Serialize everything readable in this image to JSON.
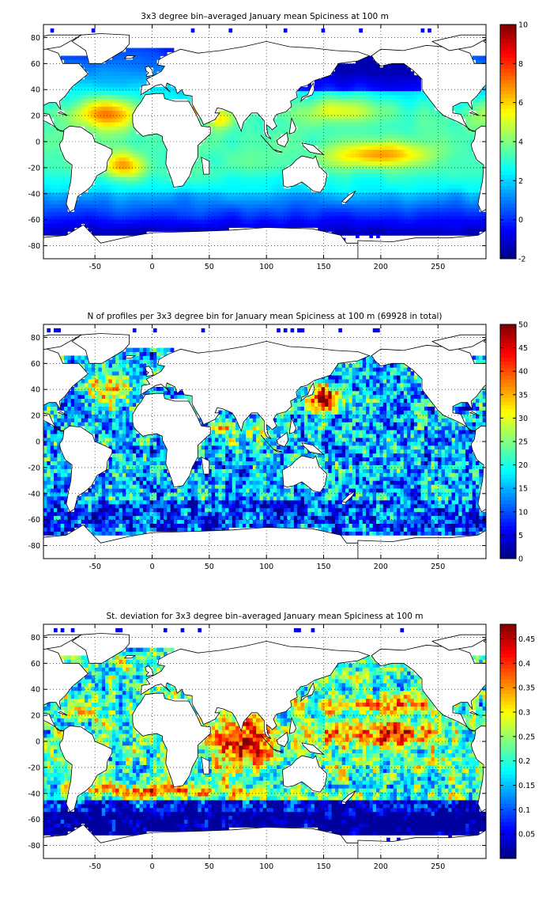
{
  "chart_data": [
    {
      "type": "heatmap",
      "title": "3x3 degree bin–averaged January mean Spiciness at 100 m",
      "xlabel": "",
      "ylabel": "",
      "xlim": [
        -95,
        292
      ],
      "ylim": [
        -90,
        90
      ],
      "xticks": [
        -50,
        0,
        50,
        100,
        150,
        200,
        250
      ],
      "yticks": [
        80,
        60,
        40,
        20,
        0,
        -20,
        -40,
        -60,
        -80
      ],
      "grid": true,
      "grid_style": "dotted",
      "colormap": "jet",
      "colorbar": {
        "min": -2,
        "max": 10,
        "ticks": [
          10,
          8,
          6,
          4,
          2,
          0,
          -2
        ]
      },
      "bin_size_deg": 3,
      "field": "spice"
    },
    {
      "type": "heatmap",
      "title": "N of profiles per 3x3 degree bin for January mean Spiciness at 100 m (69928 in total)",
      "xlabel": "",
      "ylabel": "",
      "xlim": [
        -95,
        292
      ],
      "ylim": [
        -90,
        90
      ],
      "xticks": [
        -50,
        0,
        50,
        100,
        150,
        200,
        250
      ],
      "yticks": [
        80,
        60,
        40,
        20,
        0,
        -20,
        -40,
        -60,
        -80
      ],
      "grid": true,
      "grid_style": "dotted",
      "colormap": "jet",
      "colorbar": {
        "min": 0,
        "max": 50,
        "ticks": [
          50,
          45,
          40,
          35,
          30,
          25,
          20,
          15,
          10,
          5,
          0
        ]
      },
      "bin_size_deg": 3,
      "field": "count"
    },
    {
      "type": "heatmap",
      "title": "St. deviation for 3x3 degree bin–averaged January mean Spiciness at 100 m",
      "xlabel": "",
      "ylabel": "",
      "xlim": [
        -95,
        292
      ],
      "ylim": [
        -90,
        90
      ],
      "xticks": [
        -50,
        0,
        50,
        100,
        150,
        200,
        250
      ],
      "yticks": [
        80,
        60,
        40,
        20,
        0,
        -20,
        -40,
        -60,
        -80
      ],
      "grid": true,
      "grid_style": "dotted",
      "colormap": "jet",
      "colorbar": {
        "min": 0,
        "max": 0.48,
        "ticks": [
          0.45,
          0.4,
          0.35,
          0.3,
          0.25,
          0.2,
          0.15,
          0.1,
          0.05
        ]
      },
      "bin_size_deg": 3,
      "field": "std"
    }
  ]
}
